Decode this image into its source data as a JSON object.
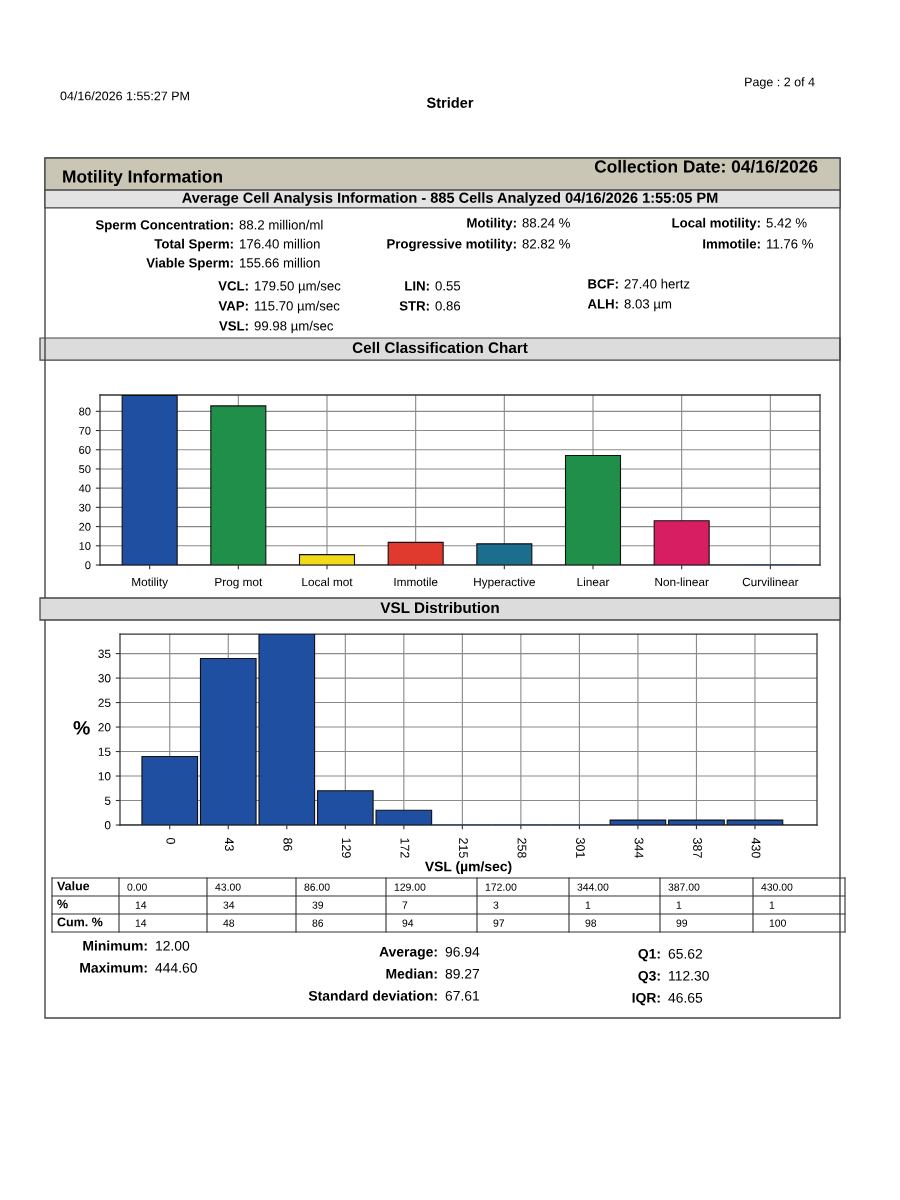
{
  "chart_data": [
    {
      "type": "bar",
      "title": "Cell Classification Chart",
      "categories": [
        "Motility",
        "Prog mot",
        "Local mot",
        "Immotile",
        "Hyperactive",
        "Linear",
        "Non-linear",
        "Curvilinear"
      ],
      "values": [
        88.24,
        82.82,
        5.42,
        11.76,
        11,
        57,
        23,
        0
      ],
      "colors": [
        "#1f4fa0",
        "#1f8f4a",
        "#f2d91a",
        "#e03a2e",
        "#1c6e8e",
        "#1f8f4a",
        "#d81e63",
        "#1f4fa0"
      ],
      "ylim": [
        0,
        88.5
      ],
      "yticks": [
        0,
        10,
        20,
        30,
        40,
        50,
        60,
        70,
        80
      ],
      "grid": true,
      "annotations": [
        "04/16/2026 1:55:27 PM",
        "Page : 2 of 4",
        "Strider",
        "Motility Information",
        "Collection Date: 04/16/2026",
        "Average Cell Analysis Information - 885 Cells Analyzed 04/16/2026 1:55:05 PM",
        "Sperm Concentration:",
        "88.2 million/ml",
        "Motility:",
        "88.24 %",
        "Local motility:",
        "5.42 %",
        "Total Sperm:",
        "176.40 million",
        "Progressive motility:",
        "82.82 %",
        "Immotile:",
        "11.76 %",
        "Viable Sperm:",
        "155.66 million",
        "VCL:",
        "179.50 µm/sec",
        "LIN:",
        "0.55",
        "BCF:",
        "27.40 hertz",
        "VAP:",
        "115.70 µm/sec",
        "STR:",
        "0.86",
        "ALH:",
        "8.03 µm",
        "VSL:",
        "99.98 µm/sec"
      ]
    },
    {
      "type": "bar",
      "title": "VSL Distribution",
      "xlabel": "VSL (µm/sec)",
      "ylabel": "%",
      "categories": [
        "0",
        "43",
        "86",
        "129",
        "172",
        "215",
        "258",
        "301",
        "344",
        "387",
        "430"
      ],
      "values": [
        14,
        34,
        39,
        7,
        3,
        0,
        0,
        0,
        1,
        1,
        1
      ],
      "color": "#1f4fa0",
      "ylim": [
        0,
        39
      ],
      "yticks": [
        0,
        5,
        10,
        15,
        20,
        25,
        30,
        35
      ],
      "grid": true,
      "annotations": [
        "Value",
        "%",
        "Cum. %",
        "0.00",
        "43.00",
        "86.00",
        "129.00",
        "172.00",
        "344.00",
        "387.00",
        "430.00",
        "14",
        "34",
        "39",
        "7",
        "3",
        "1",
        "1",
        "1",
        "14",
        "48",
        "86",
        "94",
        "97",
        "98",
        "99",
        "100",
        "Minimum:",
        "12.00",
        "Maximum:",
        "444.60",
        "Average:",
        "96.94",
        "Median:",
        "89.27",
        "Standard deviation:",
        "67.61",
        "Q1:",
        "65.62",
        "Q3:",
        "112.30",
        "IQR:",
        "46.65"
      ]
    }
  ]
}
